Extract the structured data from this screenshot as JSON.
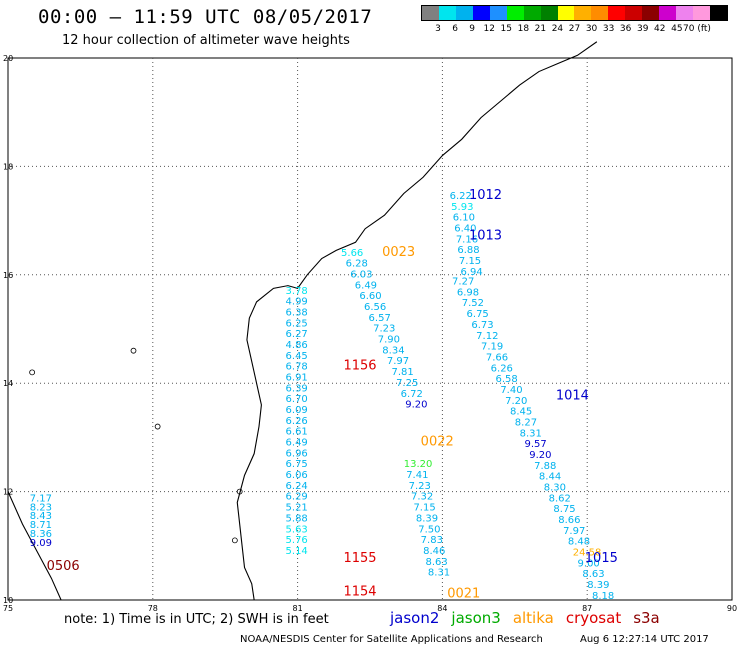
{
  "header": {
    "title": "00:00 – 11:59 UTC 08/05/2017",
    "subtitle": "12 hour collection of altimeter wave heights"
  },
  "colorbar": {
    "colors": [
      "#808080",
      "#00e5ee",
      "#00b2ee",
      "#0000ff",
      "#1e90ff",
      "#00ee00",
      "#00aa00",
      "#008000",
      "#ffff00",
      "#ffb000",
      "#ff8c00",
      "#ff0000",
      "#cc0000",
      "#8b0000",
      "#cd00cd",
      "#ee82ee",
      "#ff99dd",
      "#000000"
    ],
    "ticks": [
      "3",
      "6",
      "9",
      "12",
      "15",
      "18",
      "21",
      "24",
      "27",
      "30",
      "33",
      "36",
      "39",
      "42",
      "45",
      "70 (ft)"
    ]
  },
  "map": {
    "lon_range": [
      75,
      90
    ],
    "lat_range": [
      10,
      20
    ],
    "lon_labels": [
      "75",
      "78",
      "81",
      "84",
      "87",
      "90"
    ],
    "lat_labels": [
      "20",
      "18",
      "16",
      "14",
      "12",
      "10"
    ],
    "track_labels": [
      {
        "text": "1012",
        "lon": 84.55,
        "lat": 17.4,
        "color": "#0000cc",
        "size": 13
      },
      {
        "text": "1013",
        "lon": 84.55,
        "lat": 16.65,
        "color": "#0000cc",
        "size": 13
      },
      {
        "text": "0023",
        "lon": 82.75,
        "lat": 16.35,
        "color": "#ff9900",
        "size": 13
      },
      {
        "text": "1156",
        "lon": 81.95,
        "lat": 14.25,
        "color": "#dd0000",
        "size": 13
      },
      {
        "text": "1014",
        "lon": 86.35,
        "lat": 13.7,
        "color": "#0000cc",
        "size": 13
      },
      {
        "text": "0022",
        "lon": 83.55,
        "lat": 12.85,
        "color": "#ff9900",
        "size": 13
      },
      {
        "text": "1015",
        "lon": 86.95,
        "lat": 10.7,
        "color": "#0000cc",
        "size": 13
      },
      {
        "text": "1155",
        "lon": 81.95,
        "lat": 10.7,
        "color": "#dd0000",
        "size": 13
      },
      {
        "text": "1154",
        "lon": 81.95,
        "lat": 10.08,
        "color": "#dd0000",
        "size": 13
      },
      {
        "text": "0021",
        "lon": 84.1,
        "lat": 10.05,
        "color": "#ff9900",
        "size": 13
      },
      {
        "text": "0506",
        "lon": 75.8,
        "lat": 10.55,
        "color": "#8b0000",
        "size": 13
      }
    ],
    "tracks": [
      {
        "name": "s3a-west",
        "start": [
          75.45,
          11.82
        ],
        "step": [
          0.0,
          -0.165
        ],
        "values": [
          "7.17",
          "8.23",
          "8.43",
          "8.71",
          "8.36",
          "9.09"
        ],
        "colors": [
          "#00b2ee",
          "#00b2ee",
          "#00b2ee",
          "#00b2ee",
          "#00b2ee",
          "#0000cc"
        ]
      },
      {
        "name": "track-a",
        "start": [
          80.75,
          15.65
        ],
        "step": [
          0.0,
          -0.2
        ],
        "values": [
          "3.78",
          "4.99",
          "6.38",
          "6.25",
          "6.27",
          "4.86",
          "6.45",
          "6.78",
          "6.91",
          "6.39",
          "6.70",
          "6.09",
          "6.26",
          "6.61",
          "6.49",
          "6.96",
          "6.75",
          "6.06",
          "6.24",
          "6.29",
          "5.21",
          "5.88",
          "5.63",
          "5.76",
          "5.14"
        ],
        "colors": [
          "#00e5ee",
          "#00b2ee",
          "#00b2ee",
          "#00b2ee",
          "#00b2ee",
          "#00b2ee",
          "#00b2ee",
          "#00b2ee",
          "#00b2ee",
          "#00b2ee",
          "#00b2ee",
          "#00b2ee",
          "#00b2ee",
          "#00b2ee",
          "#00b2ee",
          "#00b2ee",
          "#00b2ee",
          "#00b2ee",
          "#00b2ee",
          "#00b2ee",
          "#00b2ee",
          "#00b2ee",
          "#00e5ee",
          "#00e5ee",
          "#00e5ee"
        ]
      },
      {
        "name": "track-b",
        "start": [
          81.9,
          16.35
        ],
        "step": [
          0.095,
          -0.2
        ],
        "values": [
          "5.66",
          "6.28",
          "6.03",
          "6.49",
          "6.60",
          "6.56",
          "6.57",
          "7.23",
          "7.90",
          "8.34",
          "7.97",
          "7.81",
          "7.25",
          "6.72",
          "9.20"
        ],
        "colors": [
          "#00e5ee",
          "#00b2ee",
          "#00b2ee",
          "#00b2ee",
          "#00b2ee",
          "#00b2ee",
          "#00b2ee",
          "#00b2ee",
          "#00b2ee",
          "#00b2ee",
          "#00b2ee",
          "#00b2ee",
          "#00b2ee",
          "#00b2ee",
          "#0000cc"
        ]
      },
      {
        "name": "track-c",
        "start": [
          83.2,
          12.45
        ],
        "step": [
          0.05,
          -0.2
        ],
        "values": [
          "13.20",
          "7.41",
          "7.23",
          "7.32",
          "7.15",
          "8.39",
          "7.50",
          "7.83",
          "8.46",
          "8.63",
          "8.31"
        ],
        "colors": [
          "#33ee33",
          "#00b2ee",
          "#00b2ee",
          "#00b2ee",
          "#00b2ee",
          "#00b2ee",
          "#00b2ee",
          "#00b2ee",
          "#00b2ee",
          "#00b2ee",
          "#00b2ee"
        ]
      },
      {
        "name": "track-d",
        "start": [
          84.15,
          17.4
        ],
        "step": [
          0.032,
          -0.2
        ],
        "values": [
          "6.22",
          "5.93",
          "6.10",
          "6.40",
          "7.16",
          "6.88",
          "7.15",
          "6.94"
        ],
        "colors": [
          "#00b2ee",
          "#00e5ee",
          "#00b2ee",
          "#00b2ee",
          "#00b2ee",
          "#00b2ee",
          "#00b2ee",
          "#00b2ee"
        ]
      },
      {
        "name": "track-e",
        "start": [
          84.2,
          15.82
        ],
        "step": [
          0.1,
          -0.2
        ],
        "values": [
          "7.27",
          "6.98",
          "7.52",
          "6.75",
          "6.73",
          "7.12",
          "7.19",
          "7.66",
          "6.26",
          "6.58",
          "7.40",
          "7.20",
          "8.45",
          "8.27",
          "8.31",
          "9.57",
          "9.20",
          "7.88",
          "8.44",
          "8.30",
          "8.62",
          "8.75",
          "8.66",
          "7.97",
          "8.48",
          "24.58",
          "9.00",
          "8.63",
          "8.39",
          "8.18"
        ],
        "colors": [
          "#00b2ee",
          "#00b2ee",
          "#00b2ee",
          "#00b2ee",
          "#00b2ee",
          "#00b2ee",
          "#00b2ee",
          "#00b2ee",
          "#00b2ee",
          "#00b2ee",
          "#00b2ee",
          "#00b2ee",
          "#00b2ee",
          "#00b2ee",
          "#00b2ee",
          "#0000cc",
          "#0000cc",
          "#00b2ee",
          "#00b2ee",
          "#00b2ee",
          "#00b2ee",
          "#00b2ee",
          "#00b2ee",
          "#00b2ee",
          "#00b2ee",
          "#ffb000",
          "#00b2ee",
          "#00b2ee",
          "#00b2ee",
          "#00b2ee"
        ]
      }
    ]
  },
  "footer": {
    "note": "note: 1) Time is in UTC; 2) SWH is in feet",
    "satellites": [
      {
        "name": "jason2",
        "color": "#0000cc"
      },
      {
        "name": "jason3",
        "color": "#00aa00"
      },
      {
        "name": "altika",
        "color": "#ff9900"
      },
      {
        "name": "cryosat",
        "color": "#dd0000"
      },
      {
        "name": "s3a",
        "color": "#8b0000"
      }
    ],
    "credit": "NOAA/NESDIS Center for Satellite Applications and Research",
    "timestamp": "Aug  6 12:27:14 UTC 2017"
  }
}
